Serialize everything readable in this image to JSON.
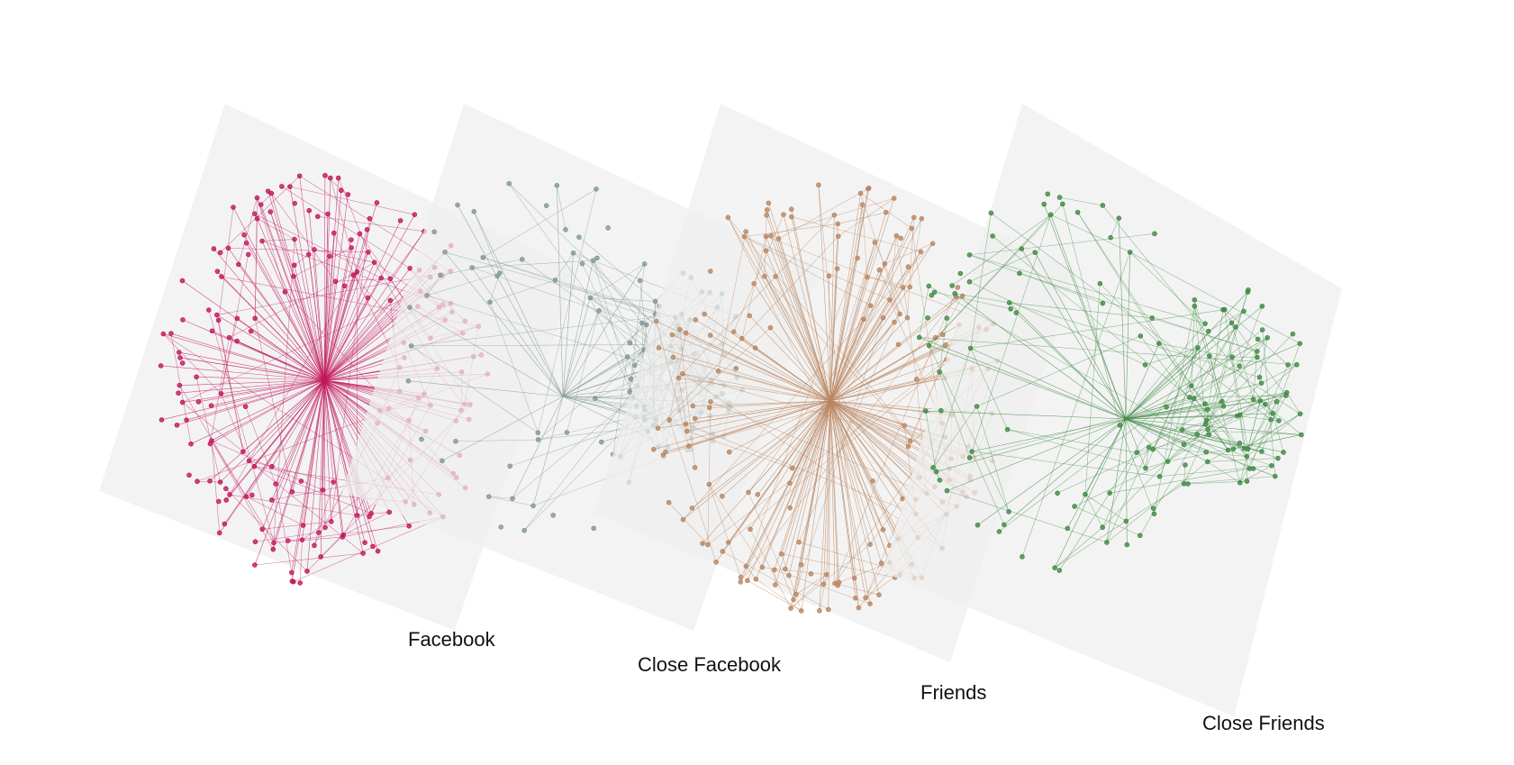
{
  "layers": [
    {
      "id": "facebook",
      "label": "Facebook",
      "color": "#c2185b",
      "hub_style": "strong-central-hub",
      "node_count": 190
    },
    {
      "id": "close-facebook",
      "label": "Close Facebook",
      "color": "#7f9890",
      "hub_style": "sparse-two-cluster",
      "node_count": 120
    },
    {
      "id": "friends",
      "label": "Friends",
      "color": "#b98660",
      "hub_style": "strong-central-hub",
      "node_count": 190
    },
    {
      "id": "close-friends",
      "label": "Close Friends",
      "color": "#3f8a43",
      "hub_style": "two-cluster",
      "node_count": 150
    }
  ],
  "plane_color": "#efefef"
}
